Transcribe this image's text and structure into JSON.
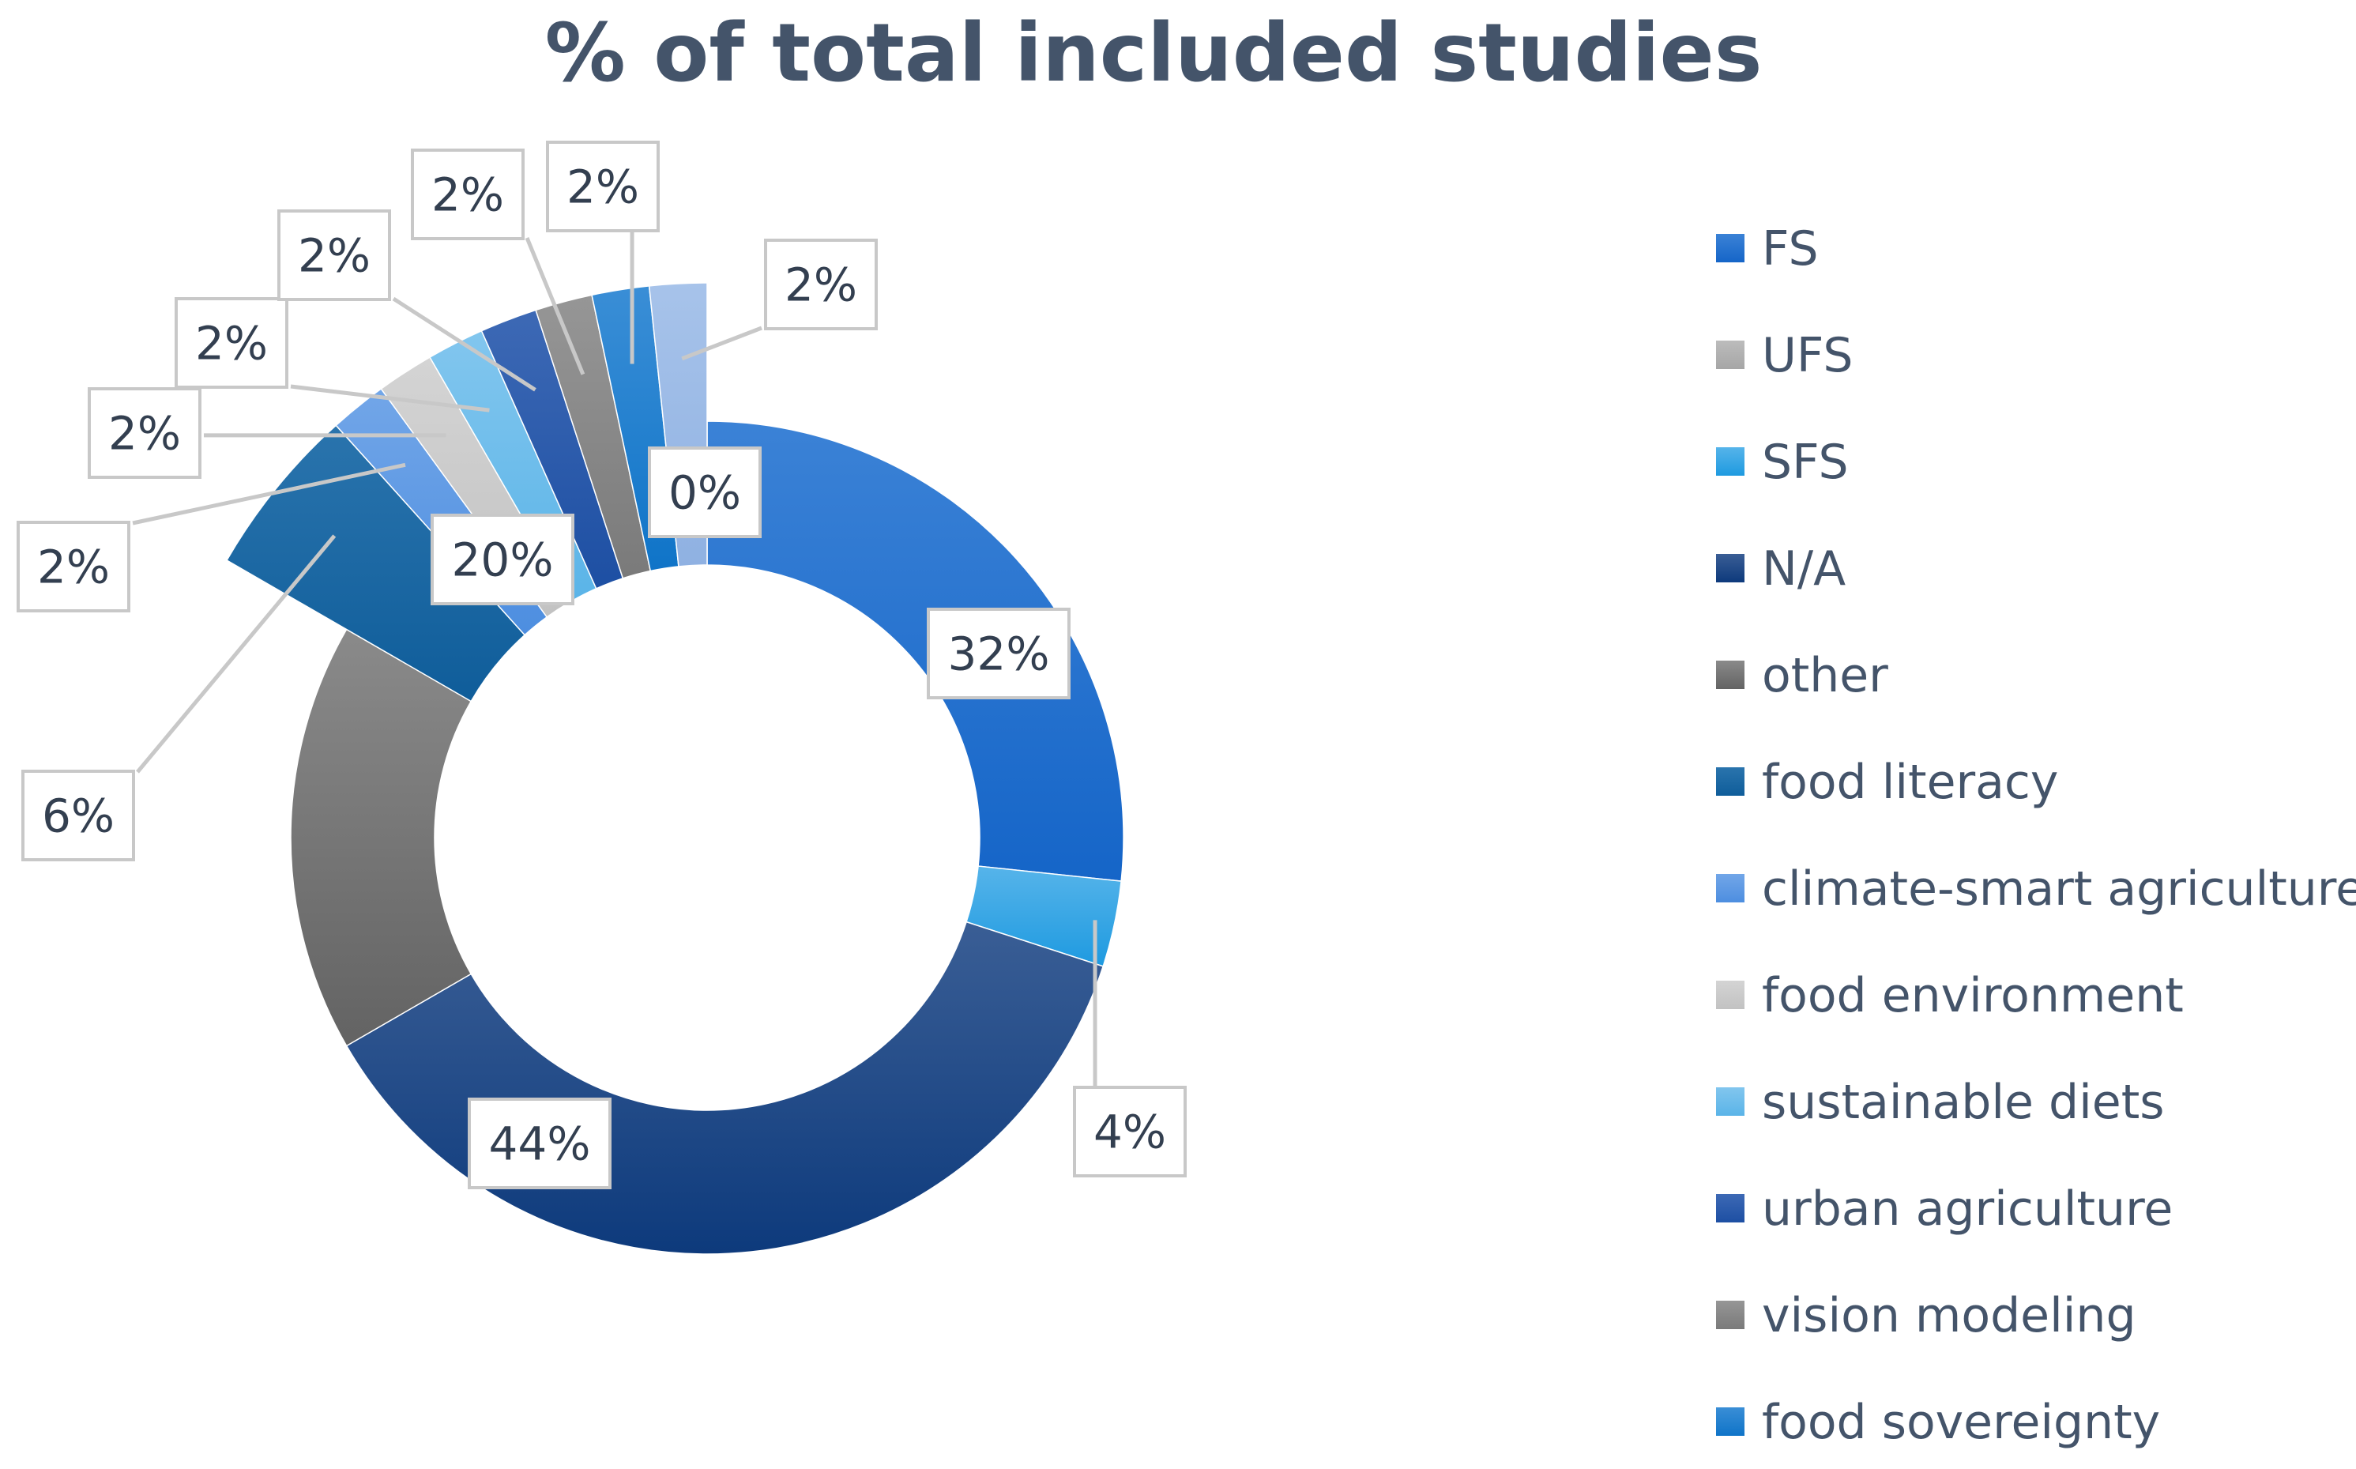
{
  "chart_data": {
    "type": "donut",
    "title": "% of total included studies",
    "legend_position": "right",
    "series": [
      {
        "name": "FS",
        "value": 32,
        "label": "32%",
        "color": "#1565c8",
        "color_light": "#3b82d6",
        "exploded": false
      },
      {
        "name": "UFS",
        "value": 0,
        "label": "0%",
        "color": "#a6a6a6",
        "color_light": "#bcbcbc",
        "exploded": false
      },
      {
        "name": "SFS",
        "value": 4,
        "label": "4%",
        "color": "#1e9ae0",
        "color_light": "#56b4ea",
        "exploded": false
      },
      {
        "name": "N/A",
        "value": 44,
        "label": "44%",
        "color": "#0d3a7c",
        "color_light": "#3a5e95",
        "exploded": false
      },
      {
        "name": "other",
        "value": 20,
        "label": "20%",
        "color": "#636363",
        "color_light": "#8a8a8a",
        "exploded": false
      },
      {
        "name": "food literacy",
        "value": 6,
        "label": "6%",
        "color": "#0f5d9a",
        "color_light": "#2a74ad",
        "exploded": true
      },
      {
        "name": "climate-smart agriculture",
        "value": 2,
        "label": "2%",
        "color": "#4d8ee0",
        "color_light": "#72a6e8",
        "exploded": true
      },
      {
        "name": "food environment",
        "value": 2,
        "label": "2%",
        "color": "#c2c2c2",
        "color_light": "#d4d4d4",
        "exploded": true
      },
      {
        "name": "sustainable diets",
        "value": 2,
        "label": "2%",
        "color": "#5ab4e8",
        "color_light": "#82c6ee",
        "exploded": true
      },
      {
        "name": "urban agriculture",
        "value": 2,
        "label": "2%",
        "color": "#1d4fa3",
        "color_light": "#3d69b5",
        "exploded": true
      },
      {
        "name": "vision modeling",
        "value": 2,
        "label": "2%",
        "color": "#7a7a7a",
        "color_light": "#969696",
        "exploded": true
      },
      {
        "name": "food sovereignty",
        "value": 2,
        "label": "2%",
        "color": "#0f74c8",
        "color_light": "#3a8ed6",
        "exploded": true
      },
      {
        "name": "",
        "value": 2,
        "label": "2%",
        "color": "#8fb1e2",
        "color_light": "#a7c3ea",
        "exploded": true
      }
    ]
  }
}
